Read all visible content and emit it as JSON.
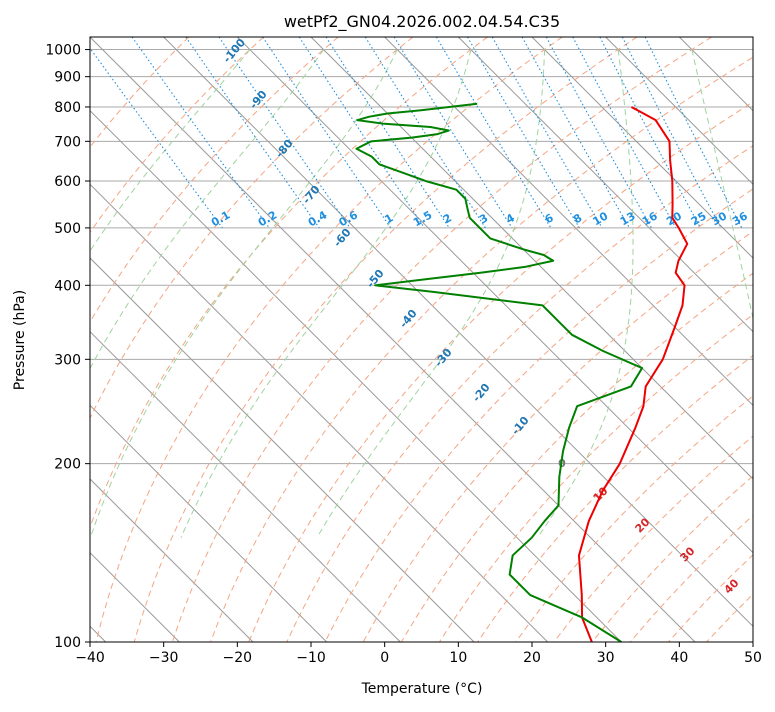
{
  "chart_data": {
    "type": "line",
    "title": "wetPf2_GN04.2026.002.04.54.C35",
    "xlabel": "Temperature (°C)",
    "ylabel": "Pressure (hPa)",
    "xlim": [
      -40,
      50
    ],
    "ylim": [
      1050,
      100
    ],
    "y_scale": "log",
    "x_ticks": [
      "−40",
      "−30",
      "−20",
      "−10",
      "0",
      "10",
      "20",
      "30",
      "40",
      "50"
    ],
    "y_ticks": [
      "100",
      "200",
      "300",
      "400",
      "500",
      "600",
      "700",
      "800",
      "900",
      "1000"
    ],
    "grid": true,
    "skew_t": true,
    "series": [
      {
        "color": "#ee0000",
        "pressure": [
          800,
          760,
          700,
          650,
          600,
          550,
          520,
          500,
          470,
          440,
          420,
          400,
          370,
          340,
          300,
          270,
          250,
          230,
          200,
          180,
          160,
          140,
          120,
          110,
          100
        ],
        "temperature": [
          24,
          25.5,
          24.5,
          22,
          19.5,
          16.5,
          14.5,
          14,
          13,
          9.5,
          7.5,
          7,
          4,
          0,
          -6,
          -12,
          -15,
          -19,
          -26,
          -32,
          -38,
          -44,
          -49,
          -52,
          -54
        ]
      },
      {
        "color": "#008000",
        "pressure": [
          810,
          790,
          780,
          770,
          760,
          750,
          740,
          730,
          720,
          710,
          700,
          680,
          660,
          640,
          620,
          600,
          580,
          560,
          540,
          520,
          500,
          480,
          460,
          450,
          440,
          430,
          420,
          410,
          400,
          390,
          370,
          350,
          330,
          310,
          290,
          270,
          250,
          230,
          210,
          190,
          170,
          160,
          150,
          140,
          130,
          120,
          110,
          100
        ],
        "dewpoint": [
          3.5,
          -5,
          -10,
          -13,
          -15,
          -12,
          -6,
          -4,
          -6,
          -10,
          -16,
          -19,
          -18,
          -18,
          -16,
          -14,
          -11,
          -11,
          -12,
          -13,
          -13,
          -13,
          -10,
          -8,
          -7.5,
          -12,
          -19,
          -27,
          -35,
          -28,
          -15,
          -15,
          -15,
          -13,
          -10,
          -14,
          -24,
          -28,
          -32,
          -36,
          -40,
          -44,
          -48,
          -53,
          -56,
          -56,
          -52,
          -50
        ]
      }
    ],
    "dry_adiabats_c": [
      -30,
      -20,
      -10,
      0,
      10,
      20,
      30,
      40,
      50,
      60,
      70,
      80,
      90,
      100,
      110,
      120,
      130,
      140,
      150,
      160,
      170,
      180
    ],
    "moist_adiabats_c": [
      -20,
      -10,
      0,
      10,
      20,
      30,
      40
    ],
    "mixing_ratios": [
      0.1,
      0.2,
      0.4,
      0.6,
      1,
      1.5,
      2,
      3,
      4,
      6,
      8,
      10,
      13,
      16,
      20,
      25,
      30,
      36
    ],
    "mixing_ratio_labels": [
      "0.1",
      "0.2",
      "0.4",
      "0.6",
      "1",
      "1.5",
      "2",
      "3",
      "4",
      "6",
      "8",
      "10",
      "13",
      "16",
      "20",
      "25",
      "30",
      "36"
    ],
    "blue_annotations": [
      "-100",
      "-90",
      "-80",
      "-70",
      "-60",
      "-50",
      "-40",
      "-30",
      "-20",
      "-10"
    ],
    "red_annotations": [
      "10",
      "20",
      "30",
      "40"
    ],
    "gray_annotations": [
      "0"
    ],
    "colors": {
      "temperature": "#ee0000",
      "dewpoint": "#008000",
      "isotherm": "#999999",
      "isobar": "#aaaaaa",
      "dry_adiabat": "#f4a582",
      "moist_adiabat": "#9fd39f",
      "mixing_ratio": "#1f8fe0",
      "blue_label": "#1f77b4",
      "red_label": "#d62728"
    }
  }
}
